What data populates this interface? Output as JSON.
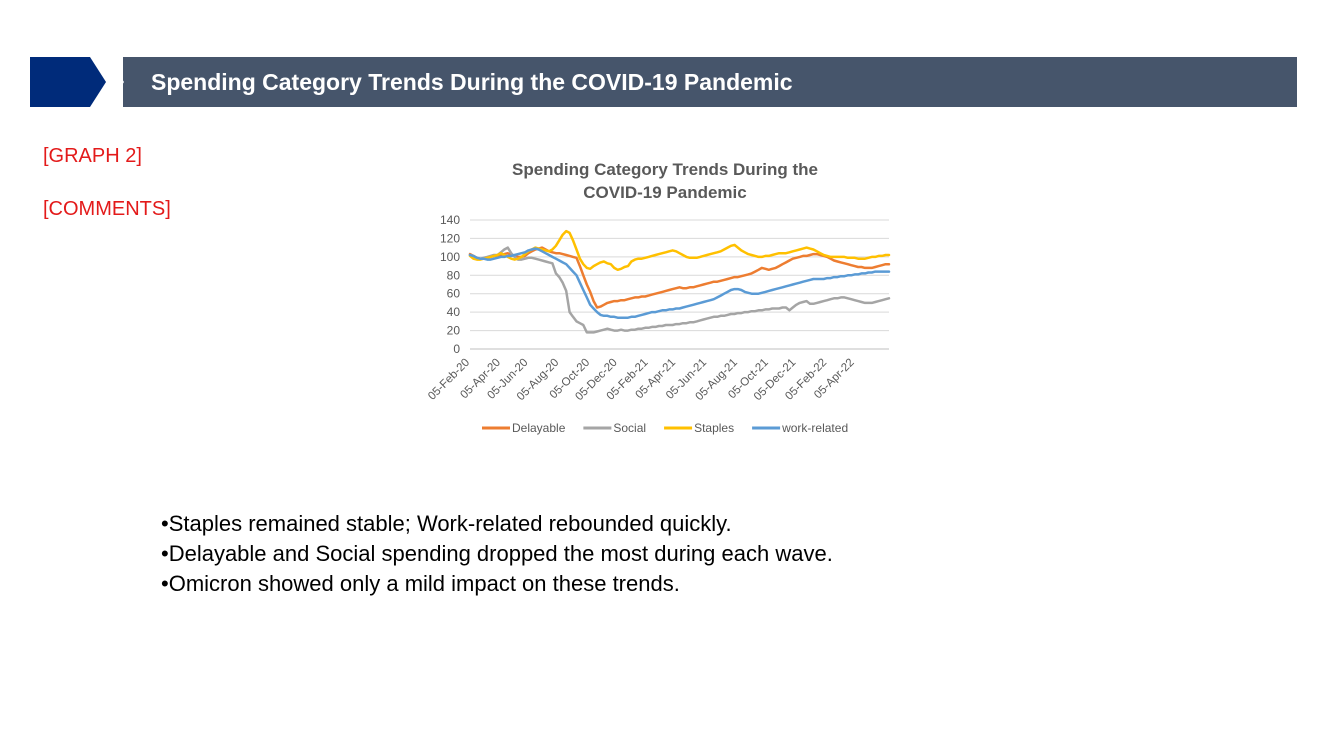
{
  "header": {
    "title": "Spending Category Trends During the COVID-19 Pandemic",
    "band_color": "#46556b",
    "chevron_color": "#002b7a"
  },
  "labels": {
    "graph": "[GRAPH 2]",
    "comments": "[COMMENTS]"
  },
  "bullets": [
    "•Staples remained stable; Work-related rebounded quickly.",
    "•Delayable and Social spending dropped the most during each wave.",
    "•Omicron showed only a mild impact on these trends."
  ],
  "chart_data": {
    "type": "line",
    "title_lines": [
      "Spending Category Trends During the",
      "COVID-19 Pandemic"
    ],
    "xlabel": "",
    "ylabel": "",
    "ylim": [
      0,
      140
    ],
    "yticks": [
      0,
      20,
      40,
      60,
      80,
      100,
      120,
      140
    ],
    "grid": true,
    "legend_position": "bottom",
    "x_start": "2020-02-05",
    "x_step_weeks": 1,
    "x_count": 123,
    "x_tick_labels": [
      "05-Feb-20",
      "05-Apr-20",
      "05-Jun-20",
      "05-Aug-20",
      "05-Oct-20",
      "05-Dec-20",
      "05-Feb-21",
      "05-Apr-21",
      "05-Jun-21",
      "05-Aug-21",
      "05-Oct-21",
      "05-Dec-21",
      "05-Feb-22",
      "05-Apr-22"
    ],
    "x_tick_index": [
      0,
      9,
      17,
      26,
      35,
      43,
      52,
      60,
      69,
      78,
      87,
      95,
      104,
      112
    ],
    "series": [
      {
        "name": "Delayable",
        "color": "#ed7d31",
        "values": [
          103,
          101,
          99,
          98,
          98,
          99,
          100,
          101,
          101,
          102,
          103,
          104,
          102,
          101,
          100,
          100,
          101,
          104,
          106,
          108,
          109,
          110,
          108,
          106,
          105,
          104,
          104,
          103,
          102,
          101,
          100,
          99,
          90,
          80,
          70,
          62,
          52,
          45,
          46,
          48,
          50,
          51,
          52,
          52,
          53,
          53,
          54,
          55,
          56,
          56,
          57,
          57,
          58,
          59,
          60,
          61,
          62,
          63,
          64,
          65,
          66,
          67,
          66,
          66,
          67,
          67,
          68,
          69,
          70,
          71,
          72,
          73,
          73,
          74,
          75,
          76,
          77,
          78,
          78,
          79,
          80,
          81,
          82,
          84,
          86,
          88,
          87,
          86,
          87,
          88,
          90,
          92,
          94,
          96,
          98,
          99,
          100,
          101,
          101,
          102,
          103,
          103,
          102,
          101,
          100,
          98,
          96,
          95,
          94,
          93,
          92,
          91,
          90,
          89,
          89,
          88,
          88,
          88,
          89,
          90,
          91,
          92,
          92
        ]
      },
      {
        "name": "Social",
        "color": "#a5a5a5",
        "values": [
          102,
          100,
          98,
          98,
          99,
          100,
          101,
          102,
          102,
          105,
          108,
          110,
          104,
          100,
          97,
          97,
          98,
          99,
          99,
          98,
          97,
          96,
          95,
          94,
          93,
          82,
          78,
          72,
          63,
          40,
          35,
          30,
          28,
          26,
          18,
          18,
          18,
          19,
          20,
          21,
          22,
          21,
          20,
          20,
          21,
          20,
          20,
          21,
          21,
          22,
          22,
          23,
          23,
          24,
          24,
          25,
          25,
          26,
          26,
          26,
          27,
          27,
          28,
          28,
          29,
          29,
          30,
          31,
          32,
          33,
          34,
          35,
          35,
          36,
          36,
          37,
          38,
          38,
          39,
          39,
          40,
          40,
          41,
          41,
          42,
          42,
          43,
          43,
          44,
          44,
          44,
          45,
          45,
          42,
          45,
          48,
          50,
          51,
          52,
          49,
          49,
          50,
          51,
          52,
          53,
          54,
          55,
          55,
          56,
          56,
          55,
          54,
          53,
          52,
          51,
          50,
          50,
          50,
          51,
          52,
          53,
          54,
          55
        ]
      },
      {
        "name": "Staples",
        "color": "#ffc000",
        "values": [
          101,
          98,
          97,
          97,
          98,
          99,
          100,
          101,
          102,
          104,
          102,
          100,
          98,
          97,
          98,
          100,
          103,
          106,
          108,
          110,
          109,
          108,
          107,
          106,
          108,
          112,
          118,
          124,
          128,
          126,
          118,
          108,
          98,
          92,
          88,
          87,
          90,
          92,
          94,
          95,
          93,
          92,
          88,
          86,
          87,
          89,
          90,
          95,
          97,
          98,
          98,
          99,
          100,
          101,
          102,
          103,
          104,
          105,
          106,
          107,
          106,
          104,
          102,
          100,
          99,
          99,
          99,
          100,
          101,
          102,
          103,
          104,
          105,
          106,
          108,
          110,
          112,
          113,
          110,
          107,
          105,
          103,
          102,
          101,
          100,
          100,
          101,
          101,
          102,
          103,
          104,
          104,
          104,
          105,
          106,
          107,
          108,
          109,
          110,
          109,
          108,
          106,
          104,
          102,
          101,
          100,
          100,
          100,
          100,
          100,
          99,
          99,
          99,
          98,
          98,
          98,
          99,
          100,
          100,
          101,
          101,
          102,
          102
        ]
      },
      {
        "name": "work-related",
        "color": "#5b9bd5",
        "values": [
          102,
          101,
          99,
          98,
          98,
          97,
          97,
          98,
          99,
          100,
          100,
          101,
          101,
          102,
          103,
          104,
          105,
          107,
          108,
          109,
          108,
          106,
          104,
          102,
          100,
          98,
          96,
          94,
          92,
          88,
          84,
          80,
          72,
          64,
          56,
          48,
          44,
          40,
          37,
          36,
          36,
          35,
          35,
          34,
          34,
          34,
          34,
          35,
          35,
          36,
          37,
          38,
          39,
          40,
          40,
          41,
          42,
          42,
          43,
          43,
          44,
          44,
          45,
          46,
          47,
          48,
          49,
          50,
          51,
          52,
          53,
          54,
          56,
          58,
          60,
          62,
          64,
          65,
          65,
          64,
          62,
          61,
          60,
          60,
          60,
          61,
          62,
          63,
          64,
          65,
          66,
          67,
          68,
          69,
          70,
          71,
          72,
          73,
          74,
          75,
          76,
          76,
          76,
          76,
          77,
          77,
          78,
          78,
          79,
          79,
          80,
          80,
          81,
          81,
          82,
          82,
          83,
          83,
          84,
          84,
          84,
          84,
          84
        ]
      }
    ]
  }
}
